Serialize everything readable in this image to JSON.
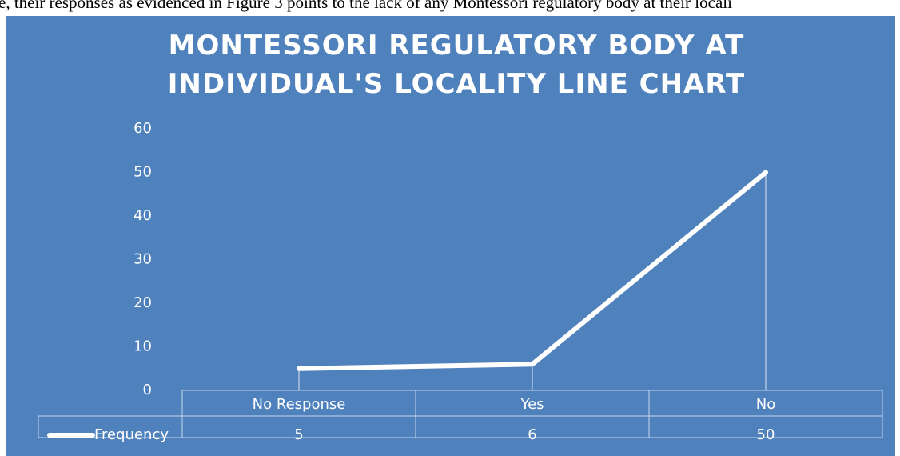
{
  "page_text": "e, their responses as evidenced in Figure 3 points to the lack of any Montessori regulatory body at their locali",
  "chart_data": {
    "type": "line",
    "title": [
      "MONTESSORI REGULATORY BODY AT",
      "INDIVIDUAL'S LOCALITY LINE CHART"
    ],
    "categories": [
      "No Response",
      "Yes",
      "No"
    ],
    "series": [
      {
        "name": "Frequency",
        "color": "#ffffff",
        "values": [
          5,
          6,
          50
        ]
      }
    ],
    "ylim": [
      0,
      60
    ],
    "yticks": [
      0,
      10,
      20,
      30,
      40,
      50,
      60
    ],
    "drop_lines": true,
    "data_table": true
  }
}
